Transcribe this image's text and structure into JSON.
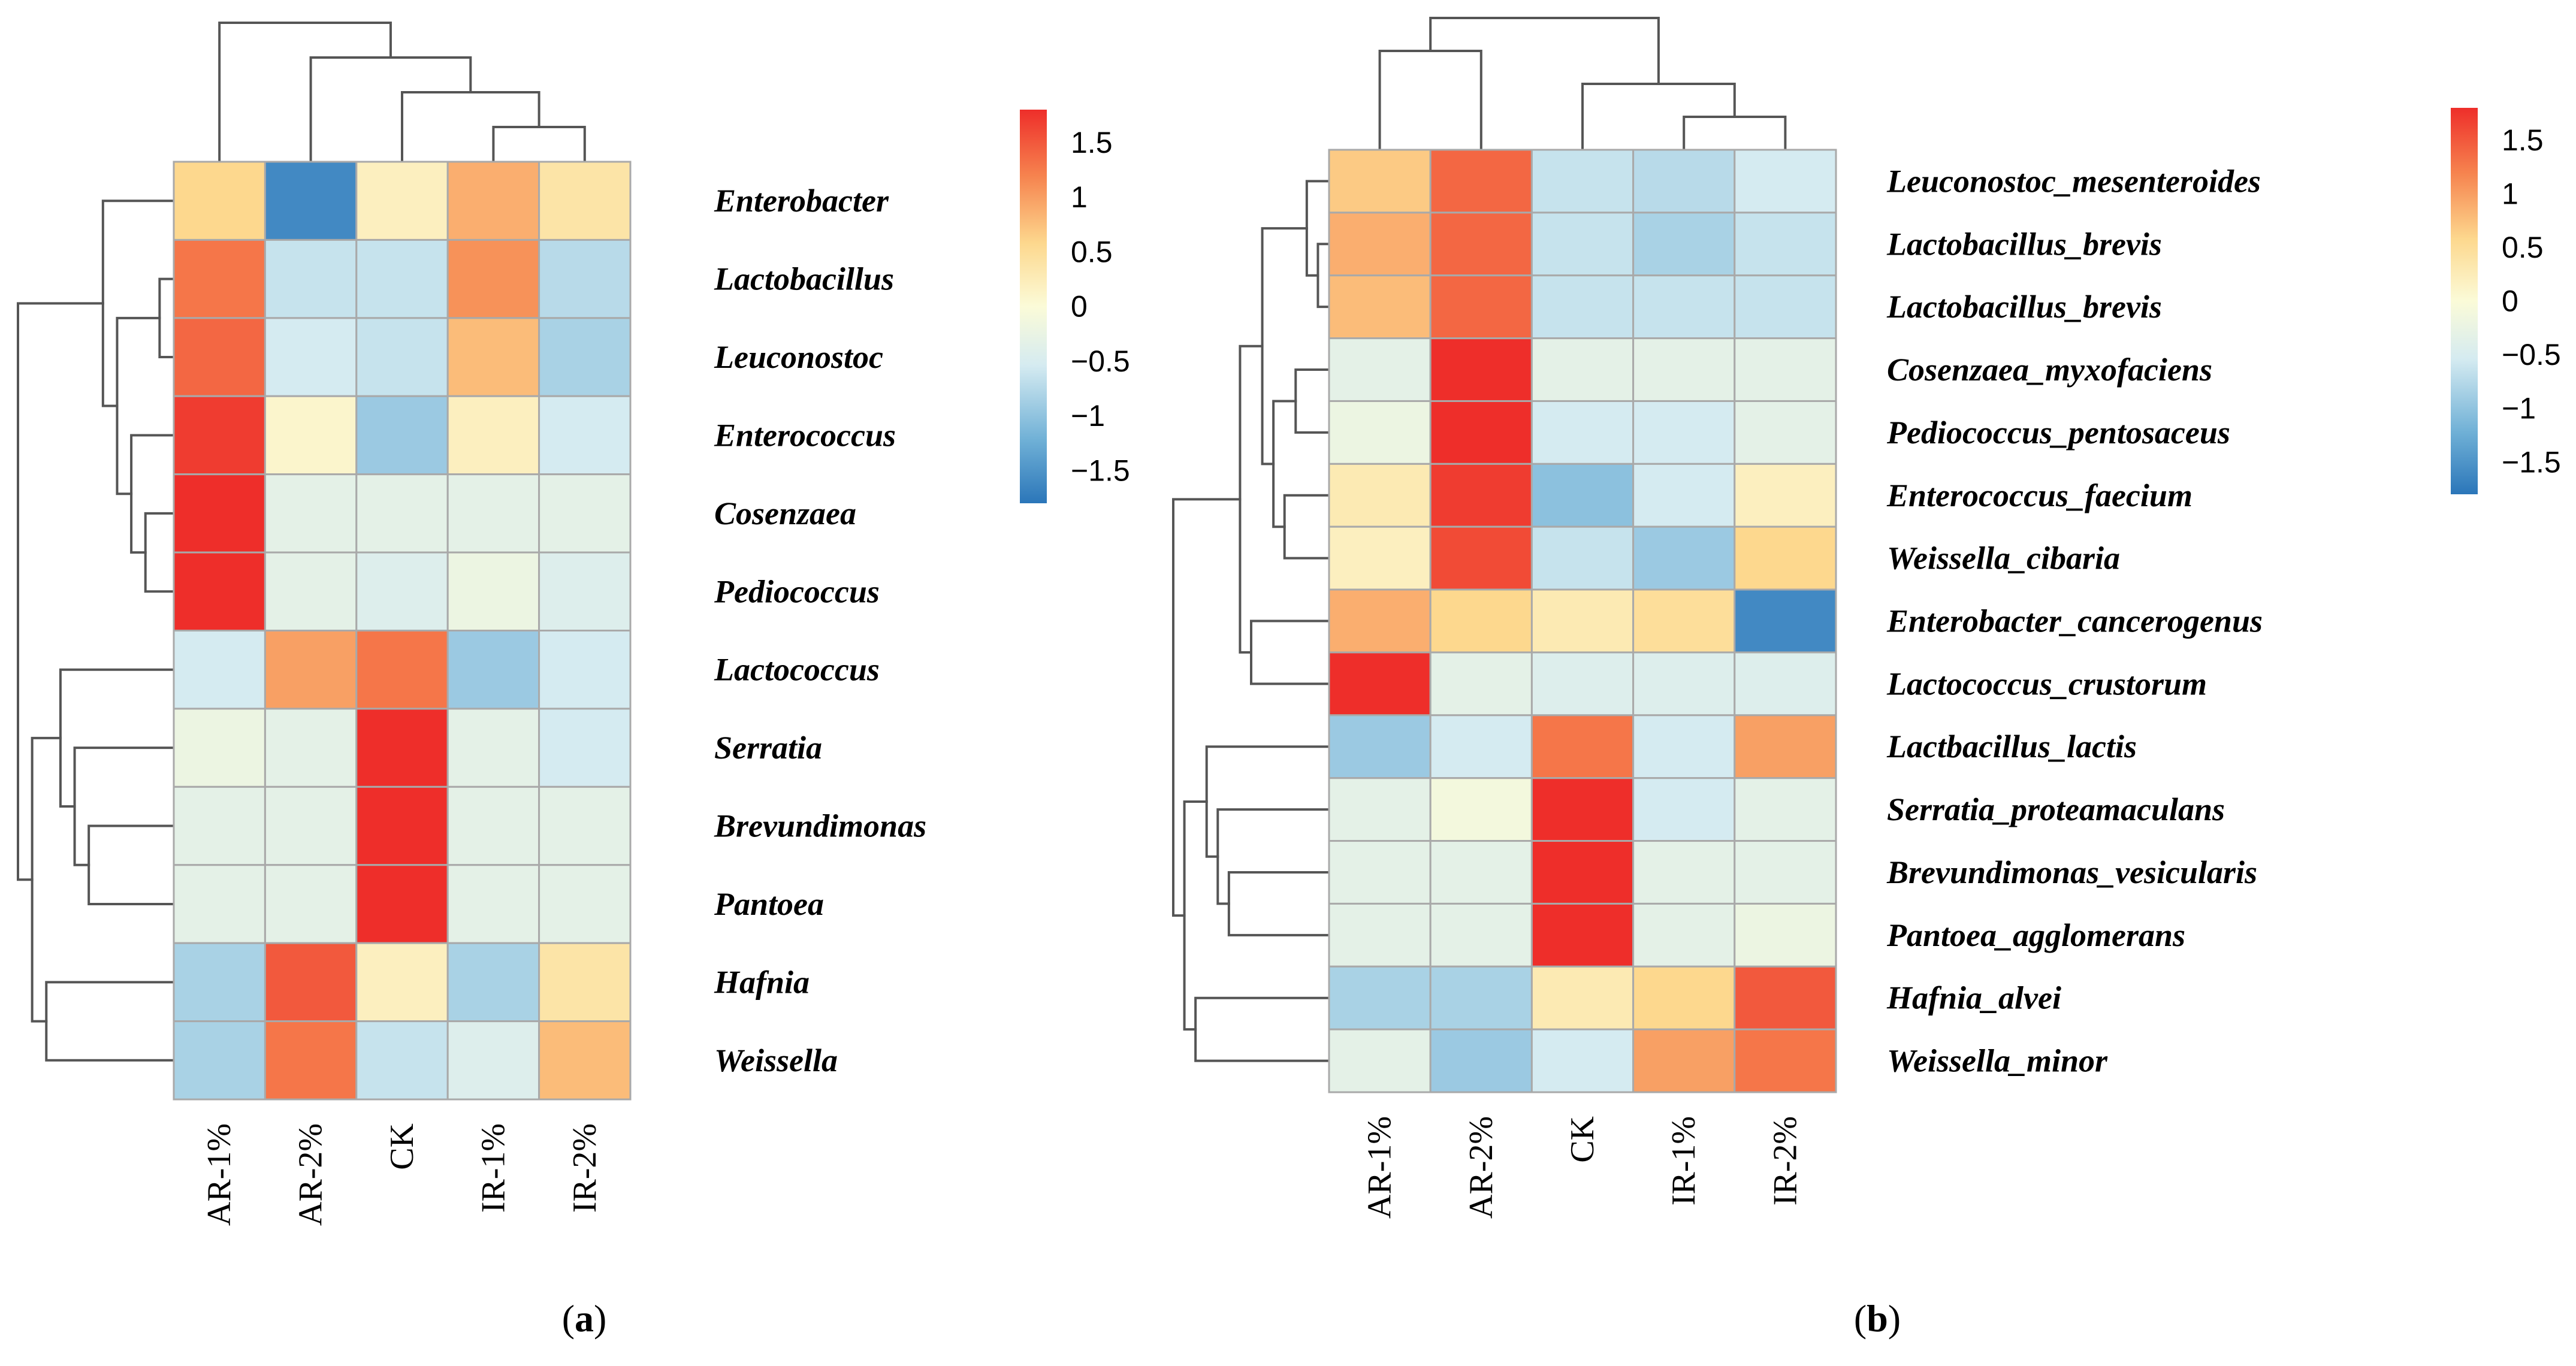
{
  "chart_data": [
    {
      "type": "heatmap",
      "panel_label_open": "(",
      "panel_label_letter": "a",
      "panel_label_close": ")",
      "rows": [
        "Enterobacter",
        "Lactobacillus",
        "Leuconostoc",
        "Enterococcus",
        "Cosenzaea",
        "Pediococcus",
        "Lactococcus",
        "Serratia",
        "Brevundimonas",
        "Pantoea",
        "Hafnia",
        "Weissella"
      ],
      "columns": [
        "AR-1%",
        "AR-2%",
        "CK",
        "IR-1%",
        "IR-2%"
      ],
      "values": [
        [
          0.6,
          -1.6,
          0.2,
          0.9,
          0.4
        ],
        [
          1.3,
          -0.6,
          -0.6,
          1.1,
          -0.7
        ],
        [
          1.4,
          -0.5,
          -0.6,
          0.8,
          -0.8
        ],
        [
          1.7,
          0.1,
          -0.9,
          0.2,
          -0.5
        ],
        [
          1.8,
          -0.3,
          -0.3,
          -0.3,
          -0.3
        ],
        [
          1.8,
          -0.3,
          -0.4,
          -0.2,
          -0.4
        ],
        [
          -0.5,
          1.0,
          1.3,
          -0.9,
          -0.5
        ],
        [
          -0.2,
          -0.3,
          1.8,
          -0.3,
          -0.5
        ],
        [
          -0.3,
          -0.3,
          1.8,
          -0.3,
          -0.3
        ],
        [
          -0.3,
          -0.3,
          1.8,
          -0.3,
          -0.3
        ],
        [
          -0.8,
          1.5,
          0.2,
          -0.8,
          0.4
        ],
        [
          -0.8,
          1.3,
          -0.6,
          -0.4,
          0.8
        ]
      ],
      "legend": {
        "ticks": [
          "1.5",
          "1",
          "0.5",
          "0",
          "−0.5",
          "−1",
          "−1.5"
        ],
        "tick_values": [
          1.5,
          1,
          0.5,
          0,
          -0.5,
          -1,
          -1.5
        ],
        "range": [
          -1.8,
          1.8
        ]
      },
      "row_dendrogram": [
        [
          1,
          2
        ],
        [
          4,
          5
        ],
        [
          3,
          13
        ],
        [
          12,
          14
        ],
        [
          0,
          15
        ],
        [
          8,
          9
        ],
        [
          7,
          17
        ],
        [
          6,
          18
        ],
        [
          10,
          11
        ],
        [
          19,
          20
        ],
        [
          16,
          21
        ]
      ],
      "col_dendrogram": [
        [
          3,
          4
        ],
        [
          2,
          5
        ],
        [
          1,
          6
        ],
        [
          0,
          7
        ]
      ]
    },
    {
      "type": "heatmap",
      "panel_label_open": "(",
      "panel_label_letter": "b",
      "panel_label_close": ")",
      "rows": [
        "Leuconostoc_mesenteroides",
        "Lactobacillus_brevis",
        "Lactobacillus_brevis",
        "Cosenzaea_myxofaciens",
        "Pediococcus_pentosaceus",
        "Enterococcus_faecium",
        "Weissella_cibaria",
        "Enterobacter_cancerogenus",
        "Lactococcus_crustorum",
        "Lactbacillus_lactis",
        "Serratia_proteamaculans",
        "Brevundimonas_vesicularis",
        "Pantoea_agglomerans",
        "Hafnia_alvei",
        "Weissella_minor"
      ],
      "columns": [
        "AR-1%",
        "AR-2%",
        "CK",
        "IR-1%",
        "IR-2%"
      ],
      "values": [
        [
          0.7,
          1.4,
          -0.6,
          -0.7,
          -0.5
        ],
        [
          0.9,
          1.4,
          -0.6,
          -0.8,
          -0.6
        ],
        [
          0.8,
          1.4,
          -0.6,
          -0.6,
          -0.6
        ],
        [
          -0.3,
          1.8,
          -0.3,
          -0.3,
          -0.3
        ],
        [
          -0.2,
          1.8,
          -0.5,
          -0.5,
          -0.3
        ],
        [
          0.3,
          1.7,
          -1.0,
          -0.5,
          0.2
        ],
        [
          0.2,
          1.6,
          -0.6,
          -0.9,
          0.6
        ],
        [
          0.9,
          0.6,
          0.3,
          0.5,
          -1.6
        ],
        [
          1.8,
          -0.3,
          -0.4,
          -0.4,
          -0.4
        ],
        [
          -0.9,
          -0.5,
          1.3,
          -0.5,
          1.0
        ],
        [
          -0.3,
          -0.1,
          1.8,
          -0.5,
          -0.3
        ],
        [
          -0.3,
          -0.3,
          1.8,
          -0.3,
          -0.3
        ],
        [
          -0.3,
          -0.3,
          1.8,
          -0.3,
          -0.2
        ],
        [
          -0.8,
          -0.8,
          0.3,
          0.6,
          1.5
        ],
        [
          -0.3,
          -0.9,
          -0.5,
          1.0,
          1.3
        ]
      ],
      "legend": {
        "ticks": [
          "1.5",
          "1",
          "0.5",
          "0",
          "−0.5",
          "−1",
          "−1.5"
        ],
        "tick_values": [
          1.5,
          1,
          0.5,
          0,
          -0.5,
          -1,
          -1.5
        ],
        "range": [
          -1.8,
          1.8
        ]
      },
      "row_dendrogram": [
        [
          1,
          2
        ],
        [
          0,
          15
        ],
        [
          3,
          4
        ],
        [
          5,
          6
        ],
        [
          17,
          18
        ],
        [
          16,
          19
        ],
        [
          7,
          8
        ],
        [
          20,
          21
        ],
        [
          11,
          12
        ],
        [
          10,
          23
        ],
        [
          9,
          24
        ],
        [
          13,
          14
        ],
        [
          25,
          26
        ],
        [
          22,
          27
        ]
      ],
      "col_dendrogram": [
        [
          3,
          4
        ],
        [
          2,
          5
        ],
        [
          0,
          1
        ],
        [
          6,
          7
        ]
      ]
    }
  ]
}
